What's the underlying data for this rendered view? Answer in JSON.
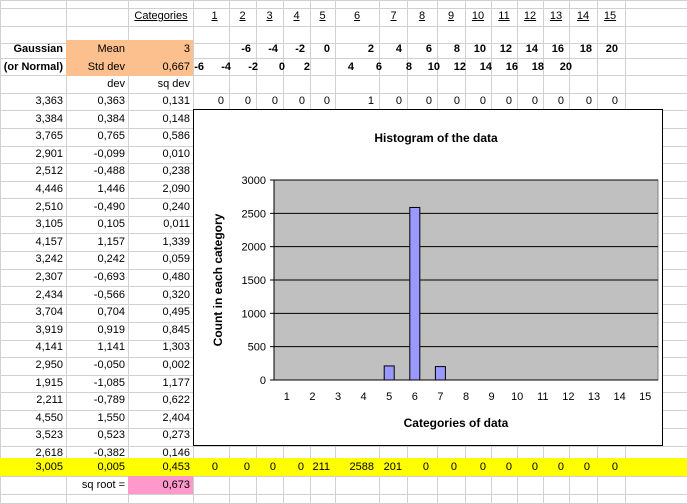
{
  "header": {
    "categories_label": "Categories",
    "category_numbers": [
      "1",
      "2",
      "3",
      "4",
      "5",
      "6",
      "7",
      "8",
      "9",
      "10",
      "11",
      "12",
      "13",
      "14",
      "15"
    ]
  },
  "params": {
    "gaussian_label": "Gaussian",
    "normal_label": "(or Normal)",
    "mean_label": "Mean",
    "mean_value": "3",
    "sd_label": "Std dev",
    "sd_value": "0,667"
  },
  "row_upper_bounds": [
    "",
    "-6",
    "-4",
    "-2",
    "0",
    "2",
    "4",
    "6",
    "8",
    "10",
    "12",
    "14",
    "16",
    "18",
    "20"
  ],
  "row_lower_bounds": [
    "-6",
    "-4",
    "-2",
    "0",
    "2",
    "4",
    "6",
    "8",
    "10",
    "12",
    "14",
    "16",
    "18",
    "20",
    ""
  ],
  "column_headers": {
    "dev": "dev",
    "sq_dev": "sq dev"
  },
  "data_rows": [
    {
      "x": "3,363",
      "dev": "0,363",
      "sq": "0,131"
    },
    {
      "x": "3,384",
      "dev": "0,384",
      "sq": "0,148"
    },
    {
      "x": "3,765",
      "dev": "0,765",
      "sq": "0,586"
    },
    {
      "x": "2,901",
      "dev": "-0,099",
      "sq": "0,010"
    },
    {
      "x": "2,512",
      "dev": "-0,488",
      "sq": "0,238"
    },
    {
      "x": "4,446",
      "dev": "1,446",
      "sq": "2,090"
    },
    {
      "x": "2,510",
      "dev": "-0,490",
      "sq": "0,240"
    },
    {
      "x": "3,105",
      "dev": "0,105",
      "sq": "0,011"
    },
    {
      "x": "4,157",
      "dev": "1,157",
      "sq": "1,339"
    },
    {
      "x": "3,242",
      "dev": "0,242",
      "sq": "0,059"
    },
    {
      "x": "2,307",
      "dev": "-0,693",
      "sq": "0,480"
    },
    {
      "x": "2,434",
      "dev": "-0,566",
      "sq": "0,320"
    },
    {
      "x": "3,704",
      "dev": "0,704",
      "sq": "0,495"
    },
    {
      "x": "3,919",
      "dev": "0,919",
      "sq": "0,845"
    },
    {
      "x": "4,141",
      "dev": "1,141",
      "sq": "1,303"
    },
    {
      "x": "2,950",
      "dev": "-0,050",
      "sq": "0,002"
    },
    {
      "x": "1,915",
      "dev": "-1,085",
      "sq": "1,177"
    },
    {
      "x": "2,211",
      "dev": "-0,789",
      "sq": "0,622"
    },
    {
      "x": "4,550",
      "dev": "1,550",
      "sq": "2,404"
    },
    {
      "x": "3,523",
      "dev": "0,523",
      "sq": "0,273"
    },
    {
      "x": "2,618",
      "dev": "-0,382",
      "sq": "0,146"
    }
  ],
  "first_row_counts": [
    "0",
    "0",
    "0",
    "0",
    "0",
    "1",
    "0",
    "0",
    "0",
    "0",
    "0",
    "0",
    "0",
    "0",
    "0"
  ],
  "totals": {
    "x": "3,005",
    "dev": "0,005",
    "sq": "0,453",
    "counts": [
      "0",
      "0",
      "0",
      "0",
      "211",
      "2588",
      "201",
      "0",
      "0",
      "0",
      "0",
      "0",
      "0",
      "0",
      "0"
    ]
  },
  "sq_root": {
    "label": "sq root =",
    "value": "0,673"
  },
  "chart_data": {
    "type": "bar",
    "title": "Histogram of the data",
    "xlabel": "Categories of data",
    "ylabel": "Count in each category",
    "categories": [
      "1",
      "2",
      "3",
      "4",
      "5",
      "6",
      "7",
      "8",
      "9",
      "10",
      "11",
      "12",
      "13",
      "14",
      "15"
    ],
    "values": [
      0,
      0,
      0,
      0,
      211,
      2588,
      201,
      0,
      0,
      0,
      0,
      0,
      0,
      0,
      0
    ],
    "ylim": [
      0,
      3000
    ],
    "yticks": [
      0,
      500,
      1000,
      1500,
      2000,
      2500,
      3000
    ],
    "grid": true,
    "colors": {
      "bar": "#9999ff",
      "plot_bg": "#c0c0c0"
    }
  }
}
